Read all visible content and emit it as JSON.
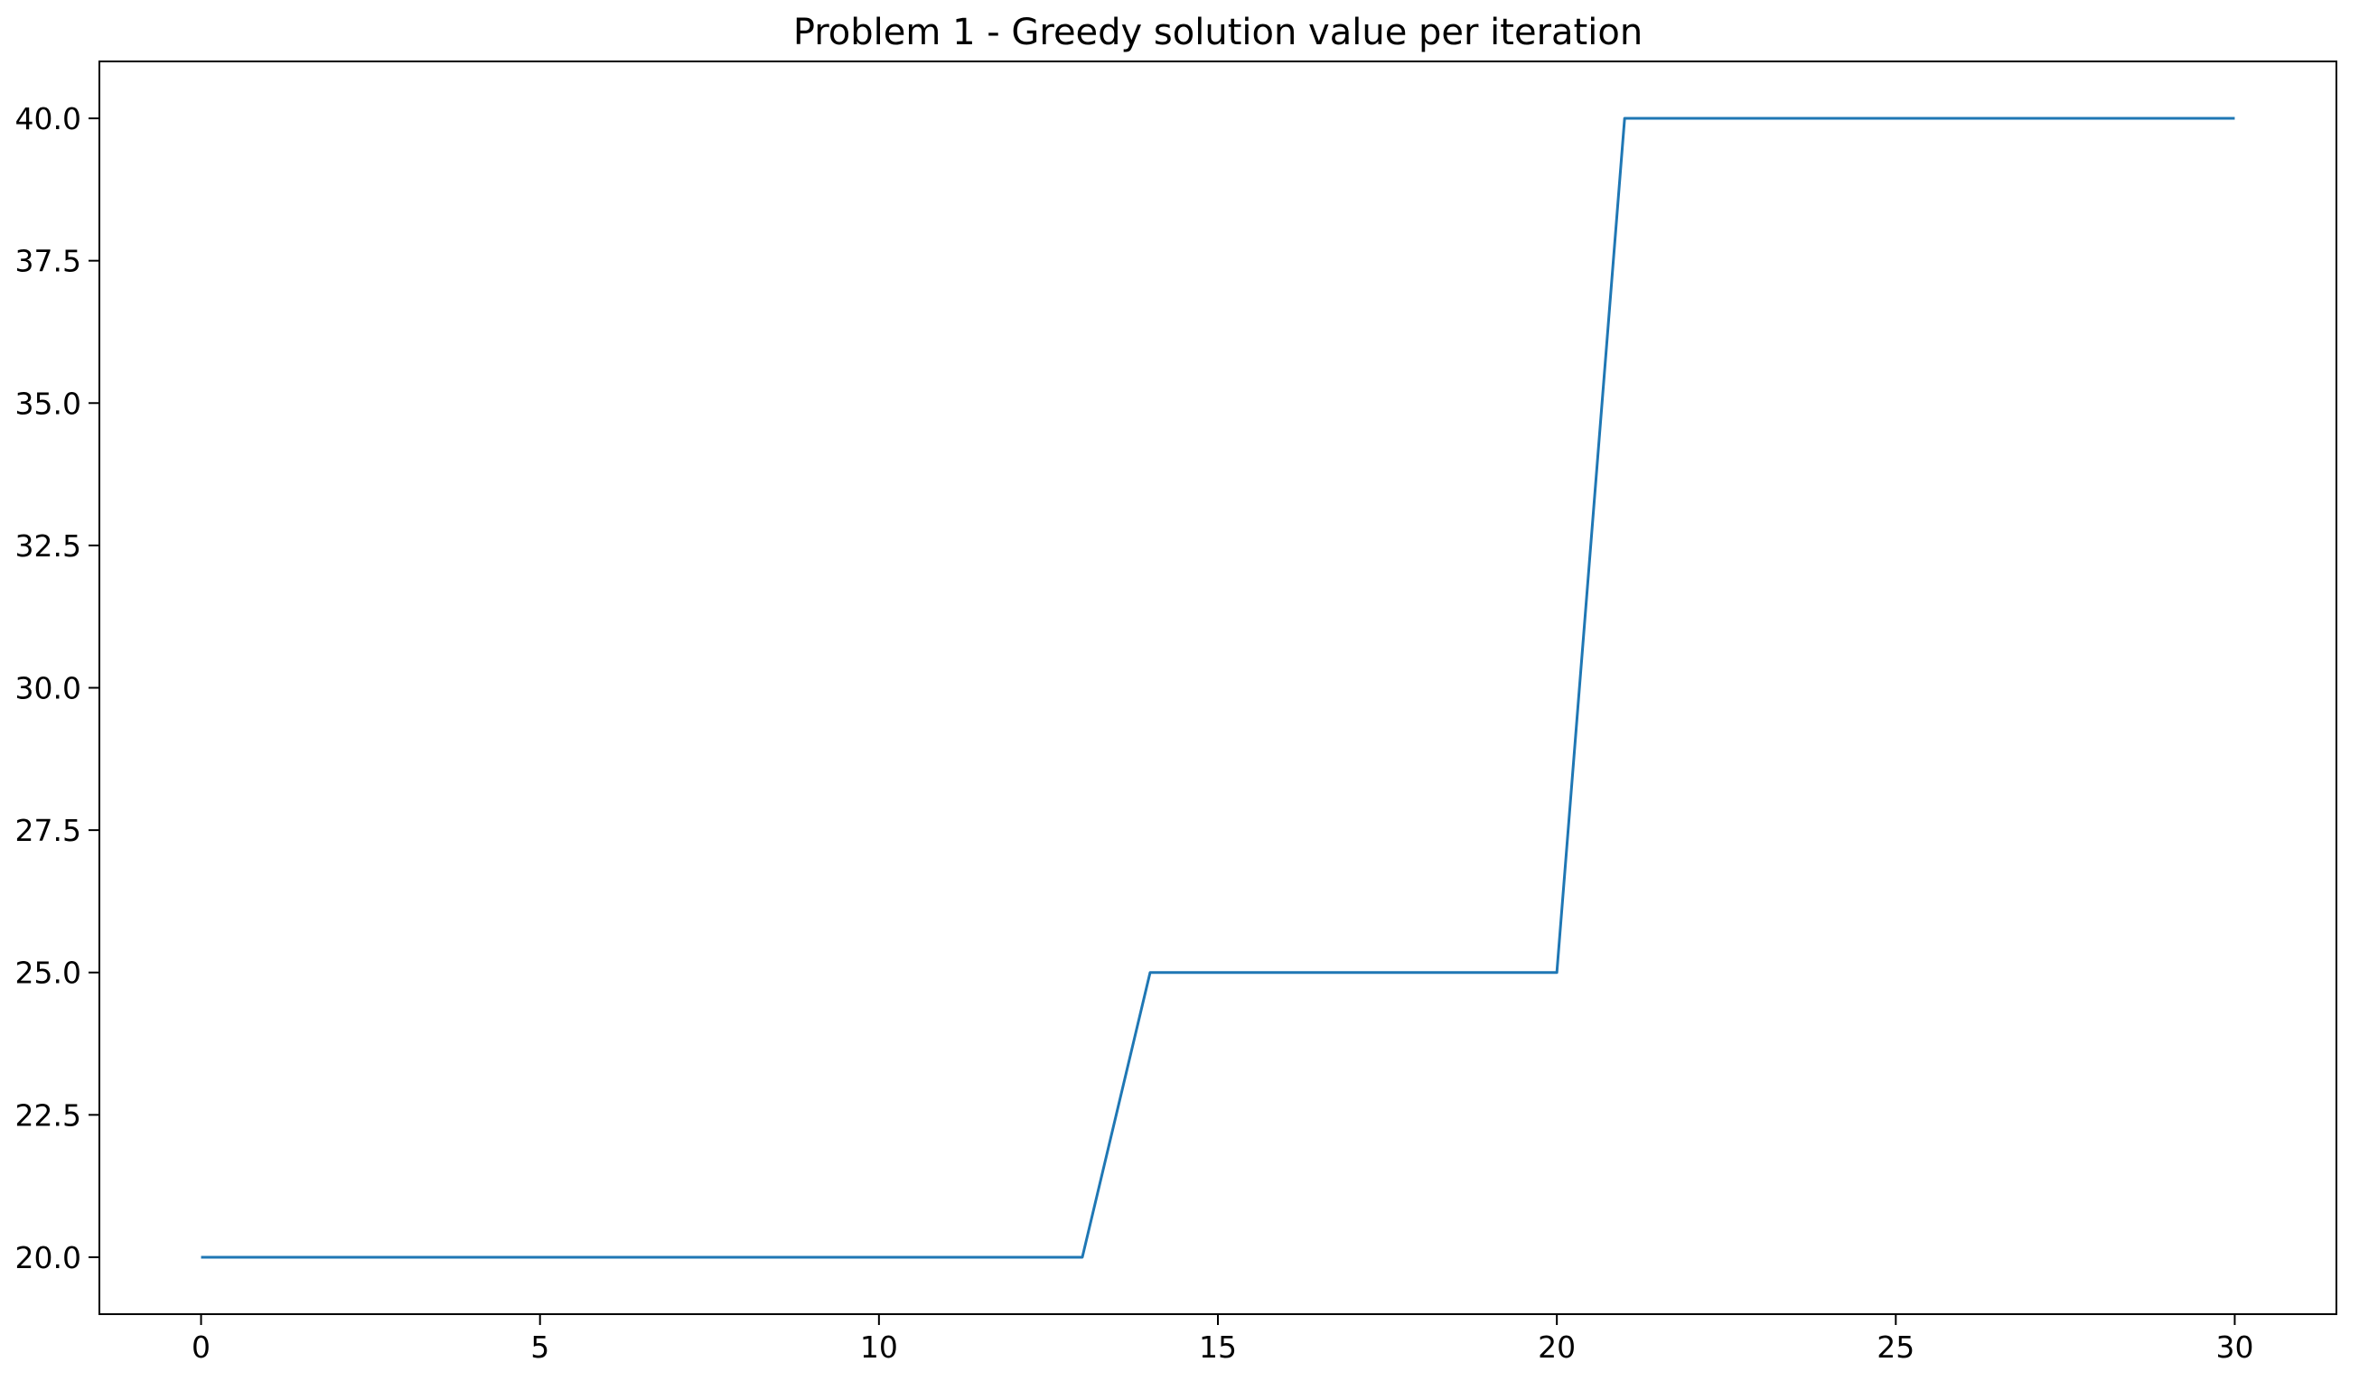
{
  "chart_data": {
    "type": "line",
    "title": "Problem 1 - Greedy solution value per iteration",
    "xlabel": "",
    "ylabel": "",
    "xlim": [
      -1.5,
      31.5
    ],
    "ylim": [
      19.0,
      41.0
    ],
    "x_ticks": [
      0,
      5,
      10,
      15,
      20,
      25,
      30
    ],
    "x_tick_labels": [
      "0",
      "5",
      "10",
      "15",
      "20",
      "25",
      "30"
    ],
    "y_ticks": [
      20.0,
      22.5,
      25.0,
      27.5,
      30.0,
      32.5,
      35.0,
      37.5,
      40.0
    ],
    "y_tick_labels": [
      "20.0",
      "22.5",
      "25.0",
      "27.5",
      "30.0",
      "32.5",
      "35.0",
      "37.5",
      "40.0"
    ],
    "grid": false,
    "legend": "none",
    "series": [
      {
        "color": "#1f77b4",
        "x": [
          0,
          1,
          2,
          3,
          4,
          5,
          6,
          7,
          8,
          9,
          10,
          11,
          12,
          13,
          14,
          15,
          16,
          17,
          18,
          19,
          20,
          21,
          22,
          23,
          24,
          25,
          26,
          27,
          28,
          29,
          30
        ],
        "y": [
          20,
          20,
          20,
          20,
          20,
          20,
          20,
          20,
          20,
          20,
          20,
          20,
          20,
          20,
          25,
          25,
          25,
          25,
          25,
          25,
          25,
          40,
          40,
          40,
          40,
          40,
          40,
          40,
          40,
          40,
          40
        ]
      }
    ]
  }
}
